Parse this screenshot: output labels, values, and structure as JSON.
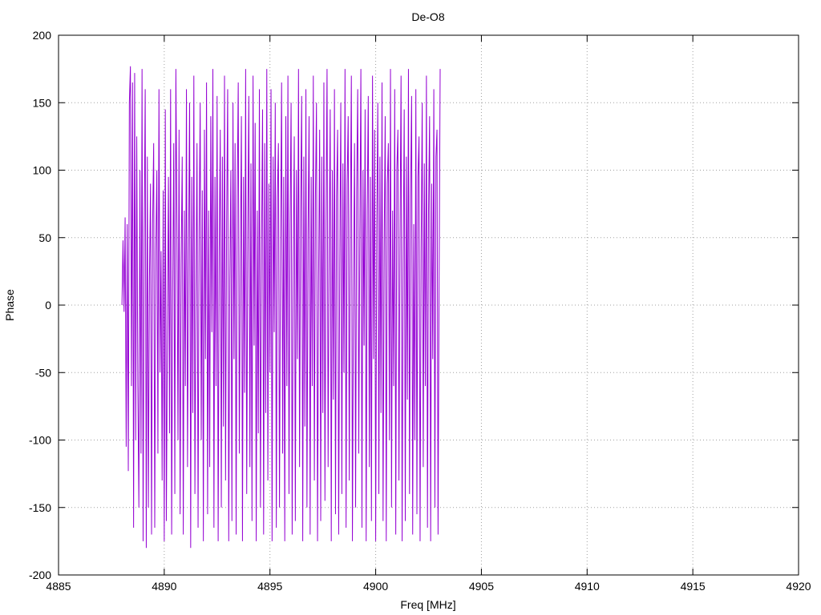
{
  "chart_data": {
    "type": "line",
    "title": "De-O8",
    "xlabel": "Freq [MHz]",
    "ylabel": "Phase",
    "xlim": [
      4885,
      4920
    ],
    "ylim": [
      -200,
      200
    ],
    "xticks": [
      4885,
      4890,
      4895,
      4900,
      4905,
      4910,
      4915,
      4920
    ],
    "yticks": [
      -200,
      -150,
      -100,
      -50,
      0,
      50,
      100,
      150,
      200
    ],
    "grid": true,
    "line_color": "#9400d3",
    "series": [
      {
        "x_start": 4888.0,
        "x_step": 0.05,
        "values": [
          0,
          48,
          -5,
          65,
          -105,
          60,
          -123,
          150,
          177,
          -60,
          165,
          -165,
          172,
          -100,
          125,
          -60,
          -150,
          100,
          -110,
          175,
          -175,
          50,
          160,
          -180,
          110,
          -150,
          20,
          90,
          -170,
          60,
          120,
          -165,
          40,
          100,
          -110,
          160,
          -50,
          40,
          -130,
          85,
          -175,
          145,
          -160,
          -20,
          95,
          -95,
          160,
          -170,
          10,
          120,
          -140,
          175,
          60,
          -100,
          130,
          -155,
          30,
          110,
          -170,
          70,
          -60,
          160,
          -120,
          40,
          150,
          -180,
          95,
          -80,
          170,
          -140,
          10,
          120,
          -165,
          55,
          150,
          -100,
          85,
          -175,
          130,
          -40,
          165,
          -155,
          70,
          -120,
          140,
          -20,
          175,
          -165,
          95,
          -60,
          155,
          -175,
          40,
          130,
          -150,
          110,
          -90,
          170,
          -130,
          60,
          160,
          -175,
          20,
          100,
          -160,
          150,
          -40,
          120,
          -170,
          80,
          165,
          -110,
          30,
          140,
          -175,
          95,
          -65,
          175,
          -140,
          50,
          155,
          -120,
          105,
          -160,
          170,
          -30,
          135,
          -175,
          70,
          -95,
          160,
          -150,
          40,
          145,
          -170,
          120,
          -80,
          175,
          -130,
          90,
          -50,
          160,
          -175,
          110,
          -20,
          150,
          -165,
          80,
          120,
          -150,
          45,
          165,
          -110,
          95,
          -175,
          140,
          -60,
          170,
          -140,
          60,
          150,
          -170,
          30,
          125,
          -160,
          100,
          -40,
          175,
          -120,
          70,
          155,
          -175,
          110,
          -90,
          160,
          -150,
          50,
          140,
          -170,
          95,
          -60,
          170,
          -130,
          80,
          150,
          -175,
          20,
          130,
          -160,
          110,
          -80,
          165,
          -145,
          60,
          175,
          -120,
          40,
          145,
          -175,
          100,
          -70,
          160,
          -155,
          80,
          130,
          -170,
          30,
          150,
          -140,
          105,
          -50,
          175,
          -165,
          90,
          140,
          -130,
          60,
          170,
          -175,
          10,
          120,
          -150,
          85,
          160,
          -110,
          50,
          175,
          -165,
          100,
          -30,
          145,
          -175,
          70,
          155,
          -120,
          95,
          -160,
          170,
          -40,
          130,
          -175,
          60,
          150,
          -140,
          110,
          -80,
          165,
          -160,
          40,
          140,
          -175,
          90,
          120,
          -100,
          175,
          -150,
          70,
          -60,
          160,
          -170,
          100,
          130,
          -130,
          50,
          170,
          -175,
          30,
          145,
          -160,
          110,
          -70,
          175,
          -140,
          80,
          155,
          -170,
          60,
          -100,
          160,
          -155,
          95,
          125,
          -175,
          40,
          150,
          -120,
          105,
          -60,
          170,
          -165,
          70,
          140,
          -175,
          90,
          -40,
          160,
          -150,
          110,
          130,
          -170,
          20,
          175
        ]
      }
    ]
  }
}
